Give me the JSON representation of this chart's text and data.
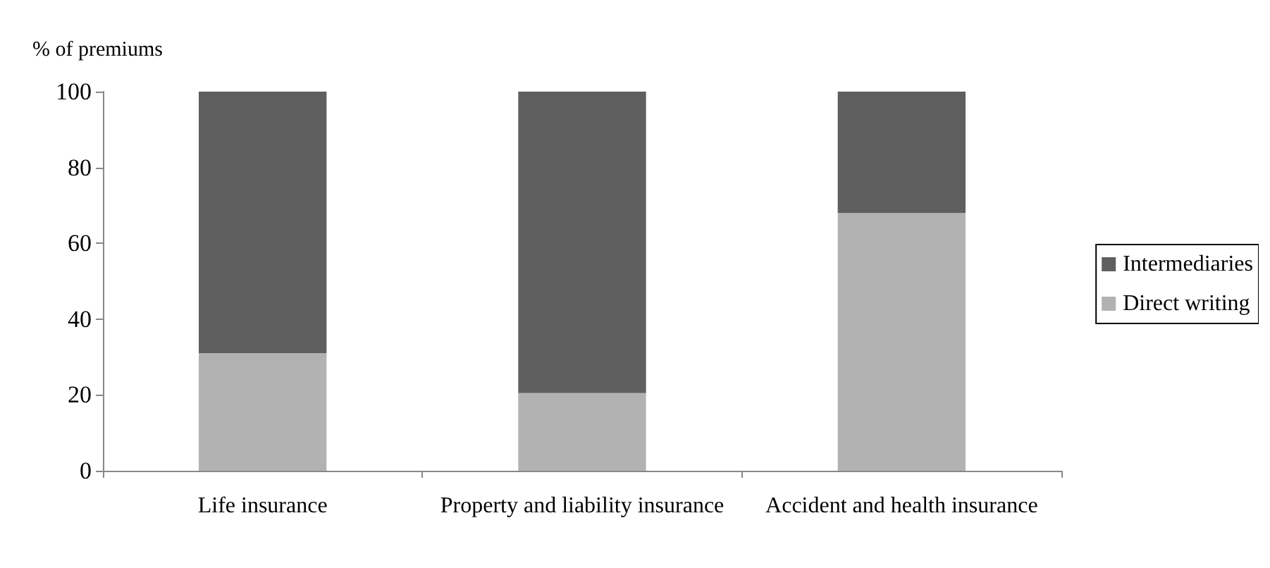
{
  "chart_data": {
    "type": "bar",
    "ylabel": "% of premiums",
    "categories": [
      "Life insurance",
      "Property and liability insurance",
      "Accident and health insurance"
    ],
    "stacked": true,
    "series": [
      {
        "name": "Direct writing",
        "color": "#b2b2b2",
        "values": [
          31,
          20.5,
          68
        ]
      },
      {
        "name": "Intermediaries",
        "color": "#5f5f5f",
        "values": [
          69,
          79.5,
          32
        ]
      }
    ],
    "ylim": [
      0,
      100
    ],
    "yticks": [
      0,
      20,
      40,
      60,
      80,
      100
    ],
    "grid": false,
    "legend": "right"
  }
}
